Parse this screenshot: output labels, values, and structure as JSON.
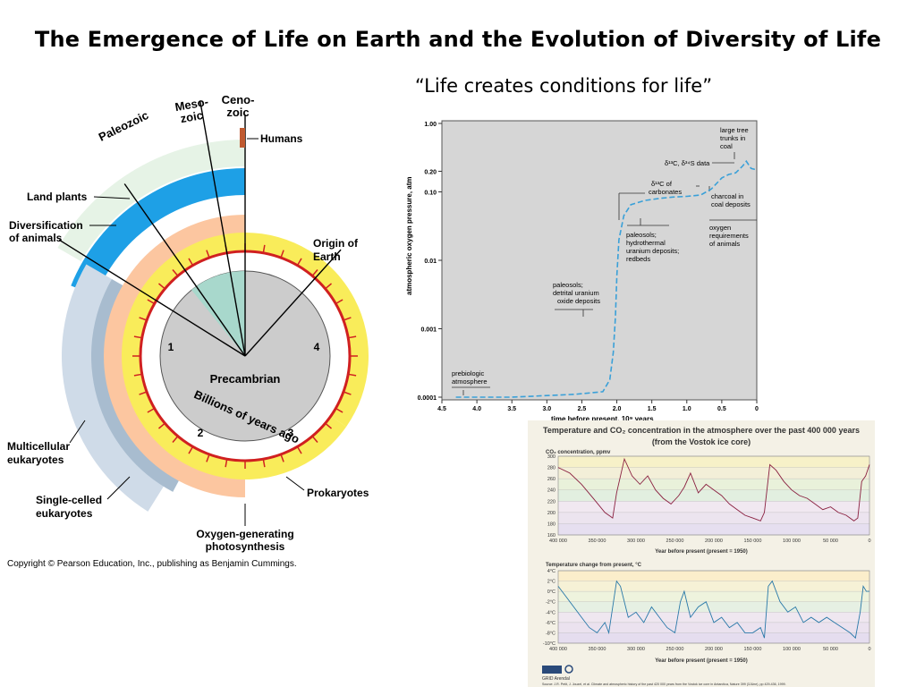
{
  "slide": {
    "title": "The Emergence of Life on Earth and the Evolution of Diversity of Life",
    "subtitle": "“Life creates conditions for life”"
  },
  "clock": {
    "era_labels": [
      "Paleozoic",
      "Meso-",
      "zoic",
      "Ceno-",
      "zoic"
    ],
    "center_title": "Precambrian",
    "center_subtitle": "Billions of years ago",
    "ticks": [
      "1",
      "2",
      "3",
      "4"
    ],
    "labels": {
      "humans": "Humans",
      "land_plants": "Land plants",
      "diversification_1": "Diversification",
      "diversification_2": "of animals",
      "origin_1": "Origin of",
      "origin_2": "Earth",
      "multicellular_1": "Multicellular",
      "multicellular_2": "eukaryotes",
      "single_celled_1": "Single-celled",
      "single_celled_2": "eukaryotes",
      "prokaryotes": "Prokaryotes",
      "oxygen_1": "Oxygen-generating",
      "oxygen_2": "photosynthesis"
    },
    "colors": {
      "land_plants": "#e6f3e6",
      "diversification": "#1ea0e6",
      "multicellular": "#cfdbe8",
      "single_celled": "#a8bccf",
      "oxygen_photosynthesis": "#fcc6a0",
      "prokaryotes": "#f9ec5a",
      "red_ring": "#d02020",
      "center": "#cccccc",
      "eon_wedge": "#a8d8cc",
      "humans": "#c05a30"
    },
    "copyright": "Copyright © Pearson Education, Inc., publishing as Benjamin Cummings."
  },
  "chart_data": [
    {
      "type": "line",
      "title": "",
      "xlabel": "time before present, 10⁹ years",
      "ylabel": "atmospheric oxygen pressure, atm",
      "y_scale": "log",
      "xlim": [
        4.5,
        0
      ],
      "ylim": [
        0.0001,
        1.0
      ],
      "x_ticks": [
        "4.5",
        "4.0",
        "3.5",
        "3.0",
        "2.5",
        "2.0",
        "1.5",
        "1.0",
        "0.5",
        "0"
      ],
      "y_ticks": [
        "1.00",
        "0.20",
        "0.10",
        "0.01",
        "0.001",
        "0.0001"
      ],
      "series": [
        {
          "x": [
            4.3,
            3.5,
            2.6,
            2.2,
            2.1,
            2.05,
            2.02,
            2.0,
            1.97,
            1.9,
            1.8,
            1.6,
            1.4,
            1.2,
            1.0,
            0.8,
            0.65,
            0.5,
            0.4,
            0.3,
            0.2,
            0.15,
            0.08,
            0
          ],
          "y": [
            0.0001,
            0.0001,
            0.00011,
            0.00012,
            0.00018,
            0.00045,
            0.0015,
            0.006,
            0.02,
            0.045,
            0.065,
            0.075,
            0.08,
            0.084,
            0.086,
            0.09,
            0.11,
            0.16,
            0.18,
            0.19,
            0.24,
            0.28,
            0.22,
            0.21
          ]
        }
      ],
      "annotations": [
        "large tree",
        "trunks in",
        "coal",
        "δ¹³C, δ³⁴S data",
        "δ¹³C of",
        "carbonates",
        "charcoal in",
        "coal deposits",
        "oxygen",
        "requirements",
        "of animals",
        "paleosols;",
        "hydrothermal",
        "uranium deposits;",
        "redbeds",
        "paleosols;",
        "detrital uranium",
        "oxide deposits",
        "prebiologic",
        "atmosphere"
      ],
      "line_color": "#3aa0d8",
      "background": "#d6d6d6"
    },
    {
      "type": "line",
      "title": "Temperature and CO₂ concentration in the atmosphere over the past 400 000 years",
      "subtitle": "(from the Vostok ice core)",
      "xlabel": "Year before present (present = 1950)",
      "ylabel": "CO₂ concentration, ppmv",
      "xlim": [
        400000,
        0
      ],
      "ylim": [
        160,
        300
      ],
      "x_ticks": [
        "400 000",
        "350 000",
        "300 000",
        "250 000",
        "200 000",
        "150 000",
        "100 000",
        "50 000",
        "0"
      ],
      "y_ticks": [
        "300",
        "280",
        "260",
        "240",
        "220",
        "200",
        "180",
        "160"
      ],
      "series": [
        {
          "name": "CO₂",
          "x": [
            400000,
            385000,
            370000,
            355000,
            340000,
            330000,
            325000,
            315000,
            305000,
            295000,
            285000,
            275000,
            265000,
            255000,
            245000,
            238000,
            230000,
            220000,
            210000,
            200000,
            190000,
            180000,
            170000,
            160000,
            150000,
            140000,
            135000,
            128000,
            120000,
            110000,
            100000,
            90000,
            80000,
            70000,
            60000,
            50000,
            40000,
            30000,
            20000,
            15000,
            10000,
            5000,
            0
          ],
          "y": [
            280,
            270,
            250,
            225,
            200,
            190,
            235,
            295,
            265,
            250,
            265,
            240,
            225,
            215,
            230,
            245,
            270,
            235,
            250,
            240,
            230,
            215,
            205,
            195,
            190,
            185,
            200,
            285,
            275,
            255,
            240,
            230,
            225,
            215,
            205,
            210,
            200,
            195,
            185,
            190,
            255,
            265,
            285
          ]
        }
      ],
      "line_color": "#8a2040"
    },
    {
      "type": "line",
      "title": "",
      "xlabel": "Year before present (present = 1950)",
      "ylabel": "Temperature change from present, °C",
      "xlim": [
        400000,
        0
      ],
      "ylim": [
        -10,
        4
      ],
      "x_ticks": [
        "400 000",
        "350 000",
        "300 000",
        "250 000",
        "200 000",
        "150 000",
        "100 000",
        "50 000",
        "0"
      ],
      "y_ticks": [
        "4°C",
        "2°C",
        "0°C",
        "-2°C",
        "-4°C",
        "-6°C",
        "-8°C",
        "-10°C"
      ],
      "series": [
        {
          "name": "Temperature",
          "x": [
            400000,
            390000,
            380000,
            370000,
            360000,
            350000,
            340000,
            335000,
            325000,
            320000,
            310000,
            300000,
            290000,
            280000,
            270000,
            260000,
            250000,
            243000,
            238000,
            230000,
            220000,
            210000,
            200000,
            190000,
            180000,
            170000,
            160000,
            150000,
            140000,
            135000,
            130000,
            125000,
            115000,
            105000,
            95000,
            85000,
            75000,
            65000,
            55000,
            45000,
            35000,
            25000,
            18000,
            12000,
            8000,
            4000,
            0
          ],
          "y": [
            1,
            -1,
            -3,
            -5,
            -7,
            -8,
            -6,
            -8,
            2,
            1,
            -5,
            -4,
            -6,
            -3,
            -5,
            -7,
            -8,
            -2,
            0,
            -5,
            -3,
            -2,
            -6,
            -5,
            -7,
            -6,
            -8,
            -8,
            -7,
            -9,
            1,
            2,
            -2,
            -4,
            -3,
            -6,
            -5,
            -6,
            -5,
            -6,
            -7,
            -8,
            -9,
            -4,
            1,
            0,
            0
          ]
        }
      ],
      "line_color": "#2878a8",
      "footer_logo": "GRID Arendal",
      "source": "Source: J.R. Petit, J. Jouzel, et al. Climate and atmospheric history of the past 420 000 years from the Vostok ice core in Antarctica, Nature 399 (3JUne), pp 429-436, 1999."
    }
  ]
}
